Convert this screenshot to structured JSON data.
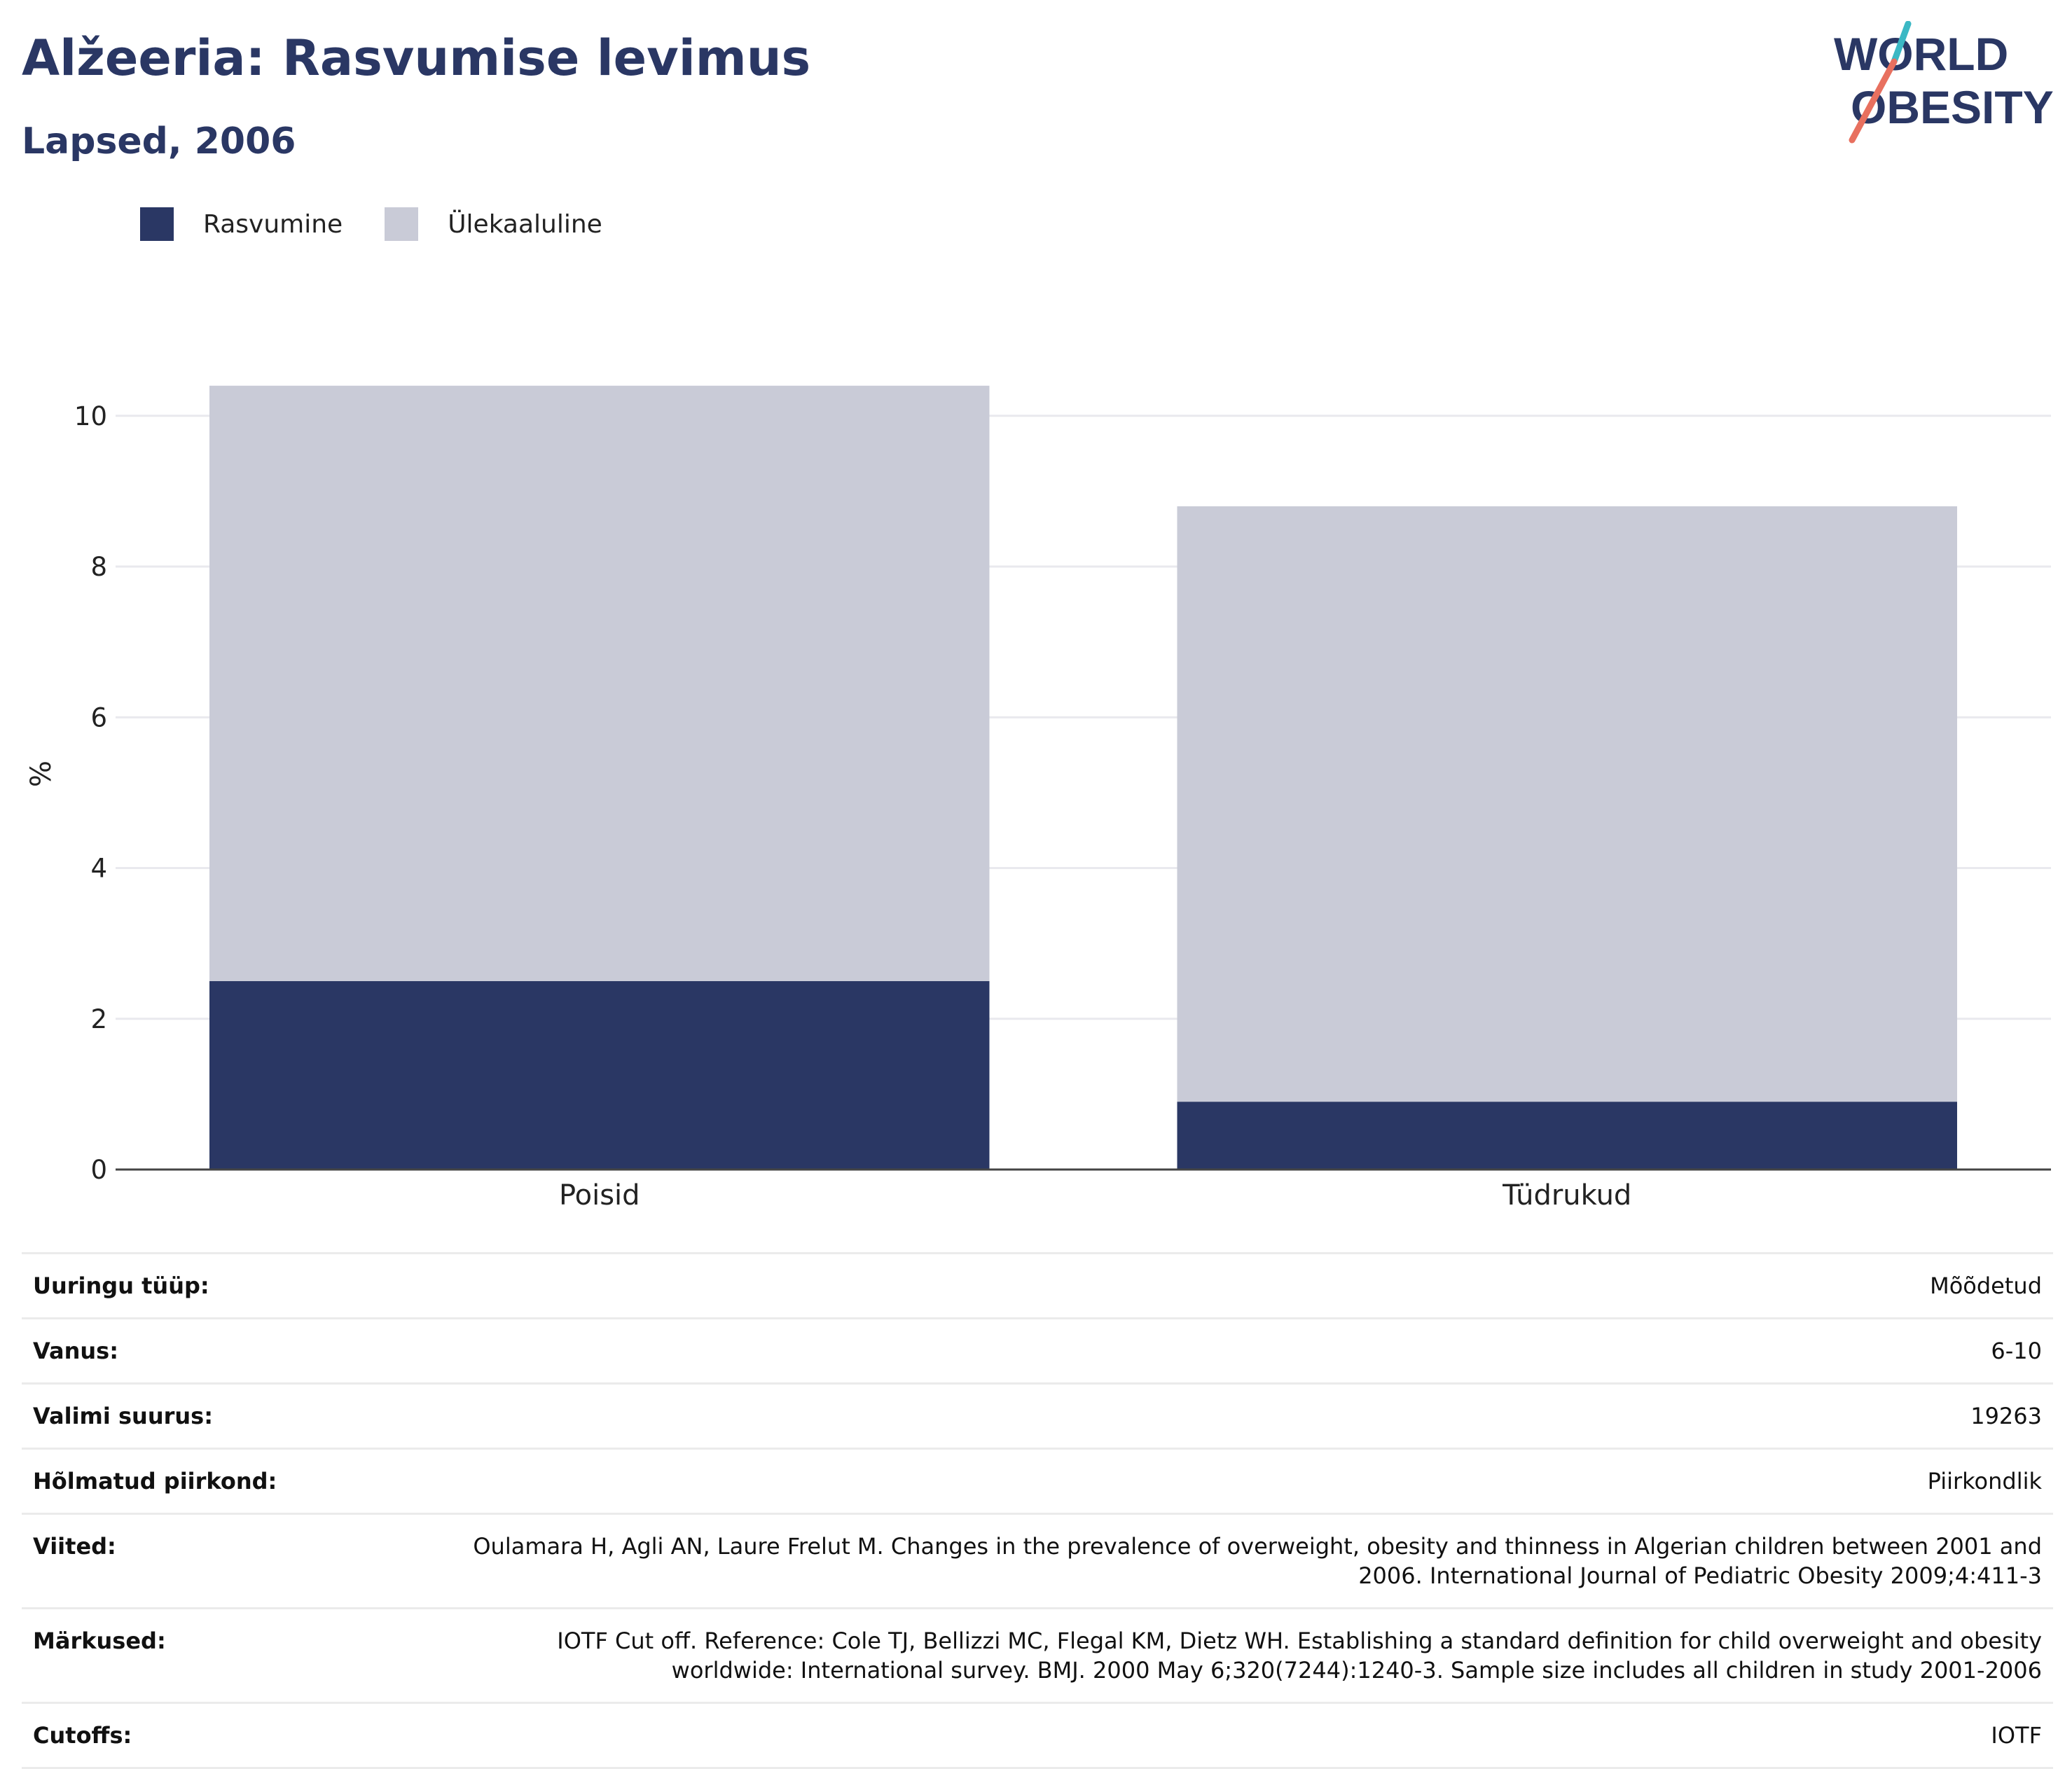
{
  "header": {
    "title": "Alžeeria: Rasvumise levimus",
    "subtitle": "Lapsed, 2006"
  },
  "logo": {
    "line1": "WORLD",
    "line2": "OBESITY",
    "colors": {
      "text": "#2a3764",
      "slash_top": "#3bb8c4",
      "slash_bottom": "#e8705f"
    }
  },
  "chart_data": {
    "type": "bar",
    "stacked": true,
    "categories": [
      "Poisid",
      "Tüdrukud"
    ],
    "series": [
      {
        "name": "Rasvumine",
        "values": [
          2.5,
          0.9
        ],
        "color": "#2a3764"
      },
      {
        "name": "Ülekaaluline",
        "values": [
          7.9,
          7.9
        ],
        "color": "#c9cbd7"
      }
    ],
    "ylabel": "%",
    "xlabel": "",
    "ylim": [
      0,
      10.5
    ],
    "yticks": [
      0,
      2,
      4,
      6,
      8,
      10
    ],
    "grid": true,
    "legend_position": "top-left"
  },
  "meta": [
    {
      "label": "Uuringu tüüp:",
      "value": "Mõõdetud"
    },
    {
      "label": "Vanus:",
      "value": "6-10"
    },
    {
      "label": "Valimi suurus:",
      "value": "19263"
    },
    {
      "label": "Hõlmatud piirkond:",
      "value": "Piirkondlik"
    },
    {
      "label": "Viited:",
      "value": "Oulamara H, Agli AN, Laure Frelut M. Changes in the prevalence of overweight, obesity and thinness in Algerian children between 2001 and 2006. International Journal of Pediatric Obesity 2009;4:411-3"
    },
    {
      "label": "Märkused:",
      "value": "IOTF Cut off. Reference: Cole TJ, Bellizzi MC, Flegal KM, Dietz WH. Establishing a standard definition for child overweight and obesity worldwide: International survey. BMJ. 2000 May 6;320(7244):1240-3. Sample size includes all children in study 2001-2006"
    },
    {
      "label": "Cutoffs:",
      "value": "IOTF"
    }
  ]
}
